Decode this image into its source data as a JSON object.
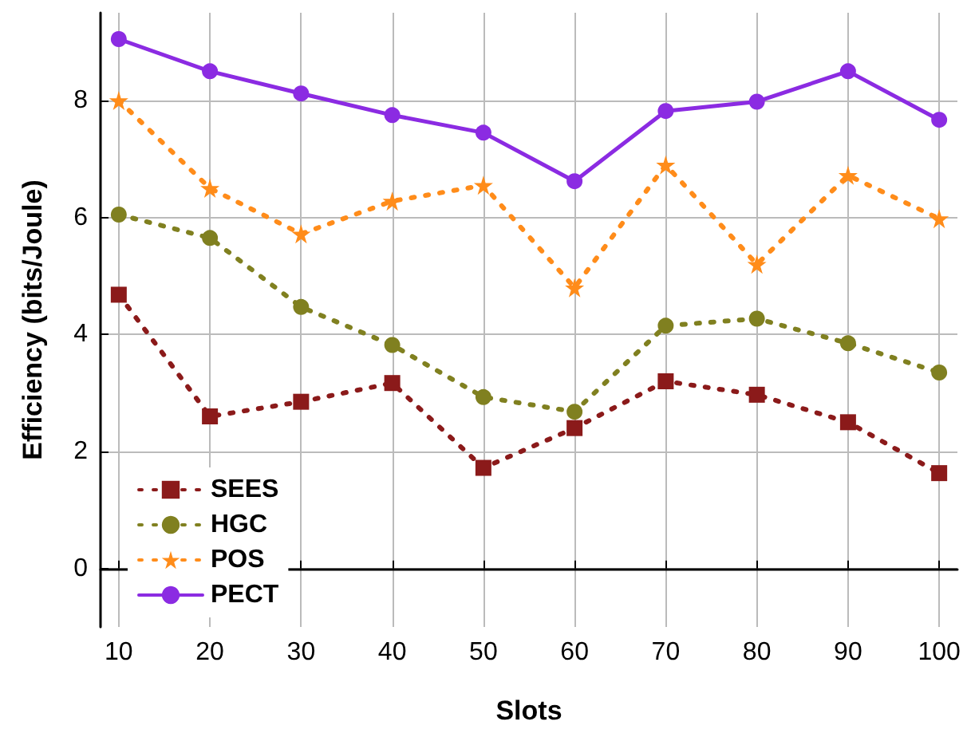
{
  "chart_data": {
    "type": "line",
    "xlabel": "Slots",
    "ylabel": "Efficiency (bits/Joule)",
    "x": [
      10,
      20,
      30,
      40,
      50,
      60,
      70,
      80,
      90,
      100
    ],
    "xlim": [
      8,
      102
    ],
    "xticks": [
      10,
      20,
      30,
      40,
      50,
      60,
      70,
      80,
      90,
      100
    ],
    "ylim": [
      -1,
      9.5
    ],
    "yticks": [
      0,
      2,
      4,
      6,
      8
    ],
    "grid": true,
    "legend": "bottom left",
    "series": [
      {
        "name": "SEES",
        "color": "#8b1a1a",
        "marker": "square",
        "line_style": "dotted",
        "values": [
          4.68,
          2.6,
          2.85,
          3.17,
          1.72,
          2.4,
          3.2,
          2.97,
          2.5,
          1.63
        ]
      },
      {
        "name": "HGC",
        "color": "#808020",
        "marker": "circle",
        "line_style": "dotted",
        "values": [
          6.05,
          5.65,
          4.47,
          3.82,
          2.93,
          2.68,
          4.15,
          4.27,
          3.85,
          3.35
        ]
      },
      {
        "name": "POS",
        "color": "#ff8c1a",
        "marker": "star",
        "line_style": "dotted",
        "values": [
          8.0,
          6.5,
          5.72,
          6.28,
          6.55,
          4.8,
          6.9,
          5.2,
          6.72,
          5.98
        ]
      },
      {
        "name": "PECT",
        "color": "#8b2be2",
        "marker": "circle",
        "line_style": "solid",
        "values": [
          9.05,
          8.5,
          8.12,
          7.75,
          7.45,
          6.62,
          7.82,
          7.98,
          8.5,
          7.67
        ]
      }
    ]
  }
}
